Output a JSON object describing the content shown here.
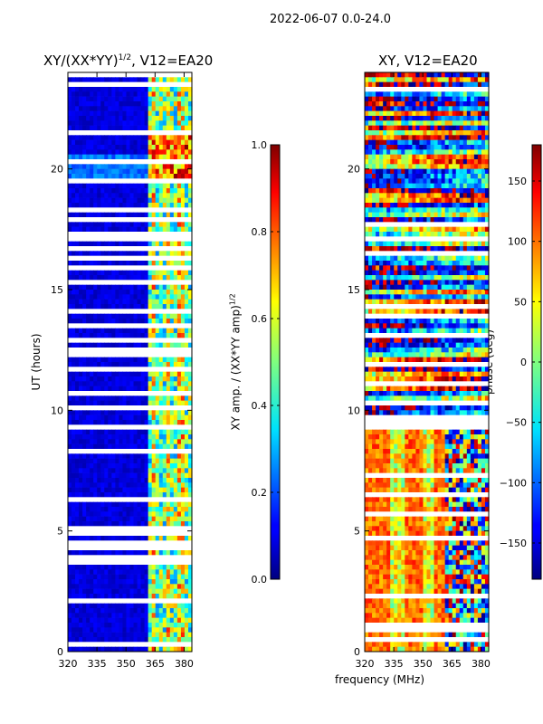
{
  "figure": {
    "suptitle": "2022-06-07 0.0-24.0",
    "xlabel": "frequency (MHz)"
  },
  "chart_data": [
    {
      "type": "heatmap",
      "title": "XY/(XX*YY)^1/2, V12=EA20",
      "title_main": "XY/(XX*YY)",
      "title_sup": "1/2",
      "title_tail": ", V12=EA20",
      "xlabel": "frequency (MHz)",
      "ylabel": "UT (hours)",
      "xlim": [
        320,
        384
      ],
      "ylim": [
        0,
        24
      ],
      "xticks": [
        "320",
        "335",
        "350",
        "365",
        "380"
      ],
      "xtick_values": [
        320,
        335,
        350,
        365,
        380
      ],
      "yticks": [
        "0",
        "5",
        "10",
        "15",
        "20"
      ],
      "ytick_values": [
        0,
        5,
        10,
        15,
        20
      ],
      "colorbar": {
        "label": "XY amp. / (XX*YY amp)^1/2",
        "label_main": "XY amp. / (XX*YY amp)",
        "label_sup": "1/2",
        "vmin": 0.0,
        "vmax": 1.0,
        "ticks": [
          "0.0",
          "0.2",
          "0.4",
          "0.6",
          "0.8",
          "1.0"
        ],
        "tick_values": [
          0.0,
          0.2,
          0.4,
          0.6,
          0.8,
          1.0
        ]
      }
    },
    {
      "type": "heatmap",
      "title": "XY, V12=EA20",
      "xlabel": "frequency (MHz)",
      "ylabel": "",
      "xlim": [
        320,
        384
      ],
      "ylim": [
        0,
        24
      ],
      "xticks": [
        "320",
        "335",
        "350",
        "365",
        "380"
      ],
      "xtick_values": [
        320,
        335,
        350,
        365,
        380
      ],
      "yticks": [
        "0",
        "5",
        "10",
        "15",
        "20"
      ],
      "ytick_values": [
        0,
        5,
        10,
        15,
        20
      ],
      "colorbar": {
        "label": "phase (deg)",
        "vmin": -180,
        "vmax": 180,
        "ticks": [
          "−150",
          "−100",
          "−50",
          "0",
          "50",
          "100",
          "150"
        ],
        "tick_values": [
          -150,
          -100,
          -50,
          0,
          50,
          100,
          150
        ]
      }
    }
  ],
  "colors": {
    "jet_low": "#00007f",
    "jet_mid": "#7fff7f",
    "jet_high": "#7f0000",
    "gap": "#ffffff"
  }
}
